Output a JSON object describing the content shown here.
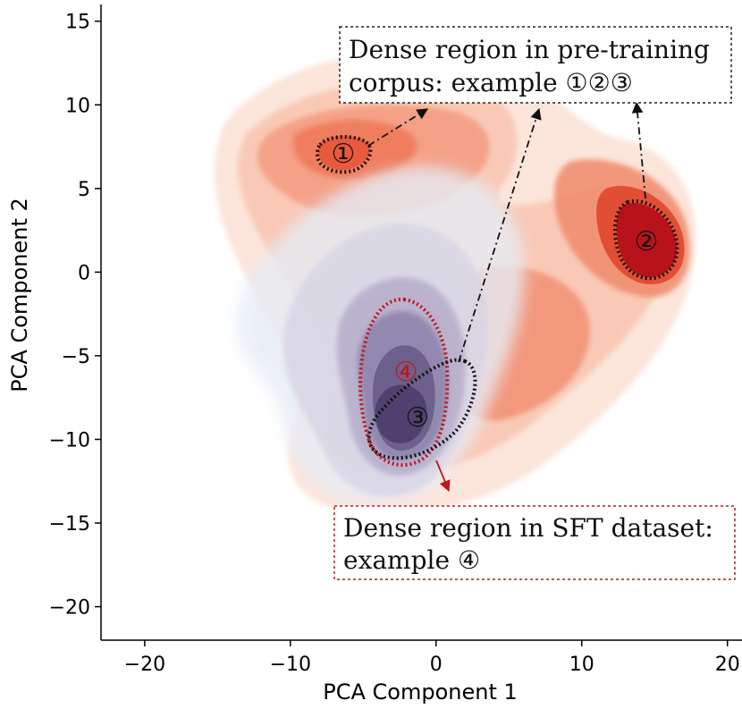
{
  "chart_data": {
    "type": "density-contour",
    "title": "",
    "xlabel": "PCA Component 1",
    "ylabel": "PCA Component 2",
    "xlim": [
      -23,
      21
    ],
    "ylim": [
      -22,
      16
    ],
    "x_ticks": [
      -20,
      -10,
      0,
      10,
      20
    ],
    "y_ticks": [
      15,
      10,
      5,
      0,
      -5,
      -10,
      -15,
      -20
    ],
    "series": [
      {
        "color": "#e8432a",
        "kde_peaks": [
          {
            "x": -6,
            "y": 7,
            "weight": 0.8
          },
          {
            "x": 15,
            "y": 1.5,
            "weight": 1.0
          },
          {
            "x": -1,
            "y": -8,
            "weight": 0.6
          }
        ]
      },
      {
        "color": "#5a4a7a",
        "kde_peaks": [
          {
            "x": -1.5,
            "y": -7.5,
            "weight": 1.0
          },
          {
            "x": -8,
            "y": 0,
            "weight": 0.3
          }
        ]
      }
    ],
    "regions": [
      {
        "marker": "①",
        "x": -6,
        "y": 6.8,
        "outline_color": "#111111"
      },
      {
        "marker": "②",
        "x": 14.5,
        "y": 1.5,
        "outline_color": "#111111"
      },
      {
        "marker": "③",
        "x": -1.5,
        "y": -8.8,
        "outline_color": "#111111"
      },
      {
        "marker": "④",
        "x": -2.3,
        "y": -6.2,
        "outline_color": "#c0161b"
      }
    ],
    "annotations": [
      {
        "text_lines": [
          "Dense region in pre-training",
          "corpus: example ①②③"
        ],
        "box_color": "#222222"
      },
      {
        "text_lines": [
          "Dense region in SFT dataset:",
          "example ④"
        ],
        "box_color": "#c0161b"
      }
    ]
  }
}
